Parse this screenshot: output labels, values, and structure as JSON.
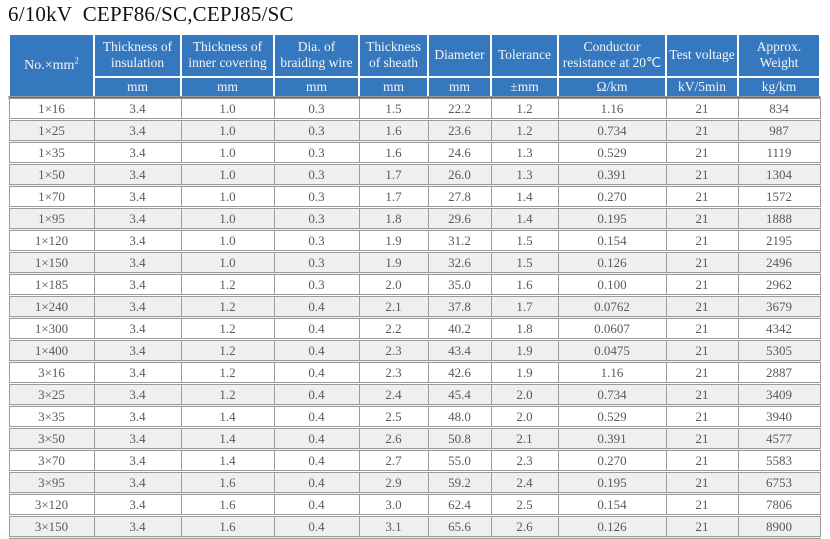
{
  "page": {
    "title": "6/10kV  CEPF86/SC,CEPJ85/SC"
  },
  "colors": {
    "header_bg": "#3578BE",
    "header_text": "#F2F6FB",
    "row_stripe_bg": "#EFEFEF",
    "grid_border": "#9B9B9B",
    "body_text": "#5A5A5A",
    "title_text": "#111111"
  },
  "table": {
    "columns": [
      {
        "label_base": "No.×mm",
        "label_sup": "2",
        "unit": ""
      },
      {
        "label": "Thickness of insulation",
        "unit": "mm"
      },
      {
        "label": "Thickness of inner covering",
        "unit": "mm"
      },
      {
        "label": "Dia. of braiding wire",
        "unit": "mm"
      },
      {
        "label": "Thickness of sheath",
        "unit": "mm"
      },
      {
        "label": "Diameter",
        "unit": "mm"
      },
      {
        "label": "Tolerance",
        "unit": "±mm"
      },
      {
        "label": "Conductor resistance at 20℃",
        "unit": "Ω/km"
      },
      {
        "label": "Test voltage",
        "unit": "kV/5min"
      },
      {
        "label": "Approx. Weight",
        "unit": "kg/km"
      }
    ],
    "rows": [
      [
        "1×16",
        "3.4",
        "1.0",
        "0.3",
        "1.5",
        "22.2",
        "1.2",
        "1.16",
        "21",
        "834"
      ],
      [
        "1×25",
        "3.4",
        "1.0",
        "0.3",
        "1.6",
        "23.6",
        "1.2",
        "0.734",
        "21",
        "987"
      ],
      [
        "1×35",
        "3.4",
        "1.0",
        "0.3",
        "1.6",
        "24.6",
        "1.3",
        "0.529",
        "21",
        "1119"
      ],
      [
        "1×50",
        "3.4",
        "1.0",
        "0.3",
        "1.7",
        "26.0",
        "1.3",
        "0.391",
        "21",
        "1304"
      ],
      [
        "1×70",
        "3.4",
        "1.0",
        "0.3",
        "1.7",
        "27.8",
        "1.4",
        "0.270",
        "21",
        "1572"
      ],
      [
        "1×95",
        "3.4",
        "1.0",
        "0.3",
        "1.8",
        "29.6",
        "1.4",
        "0.195",
        "21",
        "1888"
      ],
      [
        "1×120",
        "3.4",
        "1.0",
        "0.3",
        "1.9",
        "31.2",
        "1.5",
        "0.154",
        "21",
        "2195"
      ],
      [
        "1×150",
        "3.4",
        "1.0",
        "0.3",
        "1.9",
        "32.6",
        "1.5",
        "0.126",
        "21",
        "2496"
      ],
      [
        "1×185",
        "3.4",
        "1.2",
        "0.3",
        "2.0",
        "35.0",
        "1.6",
        "0.100",
        "21",
        "2962"
      ],
      [
        "1×240",
        "3.4",
        "1.2",
        "0.4",
        "2.1",
        "37.8",
        "1.7",
        "0.0762",
        "21",
        "3679"
      ],
      [
        "1×300",
        "3.4",
        "1.2",
        "0.4",
        "2.2",
        "40.2",
        "1.8",
        "0.0607",
        "21",
        "4342"
      ],
      [
        "1×400",
        "3.4",
        "1.2",
        "0.4",
        "2.3",
        "43.4",
        "1.9",
        "0.0475",
        "21",
        "5305"
      ],
      [
        "3×16",
        "3.4",
        "1.2",
        "0.4",
        "2.3",
        "42.6",
        "1.9",
        "1.16",
        "21",
        "2887"
      ],
      [
        "3×25",
        "3.4",
        "1.2",
        "0.4",
        "2.4",
        "45.4",
        "2.0",
        "0.734",
        "21",
        "3409"
      ],
      [
        "3×35",
        "3.4",
        "1.4",
        "0.4",
        "2.5",
        "48.0",
        "2.0",
        "0.529",
        "21",
        "3940"
      ],
      [
        "3×50",
        "3.4",
        "1.4",
        "0.4",
        "2.6",
        "50.8",
        "2.1",
        "0.391",
        "21",
        "4577"
      ],
      [
        "3×70",
        "3.4",
        "1.4",
        "0.4",
        "2.7",
        "55.0",
        "2.3",
        "0.270",
        "21",
        "5583"
      ],
      [
        "3×95",
        "3.4",
        "1.6",
        "0.4",
        "2.9",
        "59.2",
        "2.4",
        "0.195",
        "21",
        "6753"
      ],
      [
        "3×120",
        "3.4",
        "1.6",
        "0.4",
        "3.0",
        "62.4",
        "2.5",
        "0.154",
        "21",
        "7806"
      ],
      [
        "3×150",
        "3.4",
        "1.6",
        "0.4",
        "3.1",
        "65.6",
        "2.6",
        "0.126",
        "21",
        "8900"
      ]
    ]
  }
}
